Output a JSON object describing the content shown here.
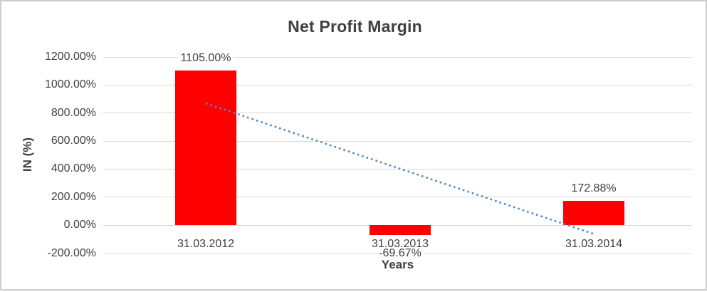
{
  "title": "Net Profit Margin",
  "colors": {
    "bar": "#ff0000",
    "trendline": "#4f87c7",
    "gridline": "#d9d9d9",
    "text": "#404040",
    "frame_border": "#cdcdcd"
  },
  "chart_data": {
    "type": "bar",
    "title": "Net Profit Margin",
    "xlabel": "Years",
    "ylabel": "IN (%)",
    "categories": [
      "31.03.2012",
      "31.03.2013",
      "31.03.2014"
    ],
    "values": [
      1105.0,
      -69.67,
      172.88
    ],
    "data_labels": [
      "1105.00%",
      "-69.67%",
      "172.88%"
    ],
    "series_name": "Net Profit Margin",
    "ylim": [
      -200,
      1200
    ],
    "y_ticks": [
      {
        "value": 1200,
        "label": "1200.00%"
      },
      {
        "value": 1000,
        "label": "1000.00%"
      },
      {
        "value": 800,
        "label": "800.00%"
      },
      {
        "value": 600,
        "label": "600.00%"
      },
      {
        "value": 400,
        "label": "400.00%"
      },
      {
        "value": 200,
        "label": "200.00%"
      },
      {
        "value": 0,
        "label": "0.00%"
      },
      {
        "value": -200,
        "label": "-200.00%"
      }
    ],
    "grid": true,
    "legend": "none",
    "bar_color": "#ff0000",
    "trendline": {
      "type": "linear",
      "style": "dotted",
      "color": "#4f87c7",
      "start_category_index": 0,
      "start_value": 869,
      "end_category_index": 2,
      "end_value": -63
    }
  }
}
